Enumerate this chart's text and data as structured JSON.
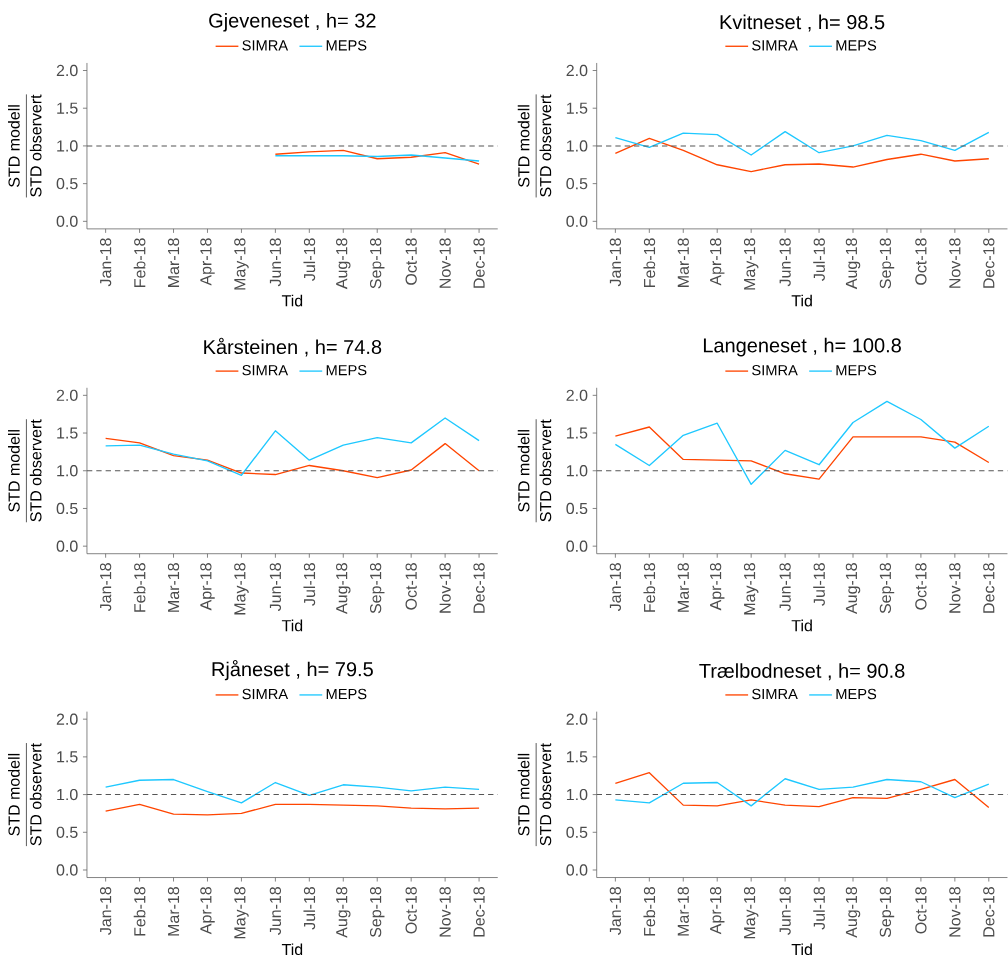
{
  "chart_data": [
    {
      "type": "line",
      "title": "Gjeveneset , h= 32",
      "xlabel": "Tid",
      "ylabel": "\\frac{\\text{STD modell}}{\\text{STD observert}}",
      "legend": "top",
      "categories": [
        "Jan-18",
        "Feb-18",
        "Mar-18",
        "Apr-18",
        "May-18",
        "Jun-18",
        "Jul-18",
        "Aug-18",
        "Sep-18",
        "Oct-18",
        "Nov-18",
        "Dec-18"
      ],
      "ylim": [
        -0.1,
        2.1
      ],
      "yticks": [
        {
          "value": 0,
          "label": "0.0"
        },
        {
          "value": 0.5,
          "label": "0.5"
        },
        {
          "value": 1,
          "label": "1.0"
        },
        {
          "value": 1.5,
          "label": "1.5"
        },
        {
          "value": 2,
          "label": "2.0"
        }
      ],
      "ref_lines": [
        {
          "axis": "y",
          "value": 1,
          "color": "#555555",
          "line_style": "dashed"
        }
      ],
      "series": [
        {
          "name": "SIMRA",
          "color": "#ff4500",
          "values": [
            null,
            null,
            null,
            null,
            null,
            0.89,
            0.92,
            0.94,
            0.83,
            0.85,
            0.91,
            0.76
          ]
        },
        {
          "name": "MEPS",
          "color": "#1ec8ff",
          "values": [
            null,
            null,
            null,
            null,
            null,
            0.87,
            0.87,
            0.87,
            0.86,
            0.88,
            0.84,
            0.8
          ]
        }
      ]
    },
    {
      "type": "line",
      "title": "Kvitneset , h= 98.5",
      "xlabel": "Tid",
      "ylabel": "\\frac{\\text{STD modell}}{\\text{STD observert}}",
      "legend": "top",
      "categories": [
        "Jan-18",
        "Feb-18",
        "Mar-18",
        "Apr-18",
        "May-18",
        "Jun-18",
        "Jul-18",
        "Aug-18",
        "Sep-18",
        "Oct-18",
        "Nov-18",
        "Dec-18"
      ],
      "ylim": [
        -0.1,
        2.1
      ],
      "yticks": [
        {
          "value": 0,
          "label": "0.0"
        },
        {
          "value": 0.5,
          "label": "0.5"
        },
        {
          "value": 1,
          "label": "1.0"
        },
        {
          "value": 1.5,
          "label": "1.5"
        },
        {
          "value": 2,
          "label": "2.0"
        }
      ],
      "ref_lines": [
        {
          "axis": "y",
          "value": 1,
          "color": "#555555",
          "line_style": "dashed"
        }
      ],
      "series": [
        {
          "name": "SIMRA",
          "color": "#ff4500",
          "values": [
            0.9,
            1.1,
            0.94,
            0.75,
            0.66,
            0.75,
            0.76,
            0.72,
            0.82,
            0.89,
            0.8,
            0.83
          ]
        },
        {
          "name": "MEPS",
          "color": "#1ec8ff",
          "values": [
            1.11,
            0.98,
            1.17,
            1.15,
            0.88,
            1.19,
            0.91,
            1.0,
            1.14,
            1.07,
            0.94,
            1.18
          ]
        }
      ]
    },
    {
      "type": "line",
      "title": "Kårsteinen , h= 74.8",
      "xlabel": "Tid",
      "ylabel": "\\frac{\\text{STD modell}}{\\text{STD observert}}",
      "legend": "top",
      "categories": [
        "Jan-18",
        "Feb-18",
        "Mar-18",
        "Apr-18",
        "May-18",
        "Jun-18",
        "Jul-18",
        "Aug-18",
        "Sep-18",
        "Oct-18",
        "Nov-18",
        "Dec-18"
      ],
      "ylim": [
        -0.1,
        2.1
      ],
      "yticks": [
        {
          "value": 0,
          "label": "0.0"
        },
        {
          "value": 0.5,
          "label": "0.5"
        },
        {
          "value": 1,
          "label": "1.0"
        },
        {
          "value": 1.5,
          "label": "1.5"
        },
        {
          "value": 2,
          "label": "2.0"
        }
      ],
      "ref_lines": [
        {
          "axis": "y",
          "value": 1,
          "color": "#555555",
          "line_style": "dashed"
        }
      ],
      "series": [
        {
          "name": "SIMRA",
          "color": "#ff4500",
          "values": [
            1.43,
            1.37,
            1.2,
            1.14,
            0.97,
            0.95,
            1.07,
            1.0,
            0.91,
            1.01,
            1.36,
            1.0
          ]
        },
        {
          "name": "MEPS",
          "color": "#1ec8ff",
          "values": [
            1.33,
            1.34,
            1.22,
            1.13,
            0.94,
            1.53,
            1.14,
            1.34,
            1.44,
            1.37,
            1.7,
            1.4
          ]
        }
      ]
    },
    {
      "type": "line",
      "title": "Langeneset , h= 100.8",
      "xlabel": "Tid",
      "ylabel": "\\frac{\\text{STD modell}}{\\text{STD observert}}",
      "legend": "top",
      "categories": [
        "Jan-18",
        "Feb-18",
        "Mar-18",
        "Apr-18",
        "May-18",
        "Jun-18",
        "Jul-18",
        "Aug-18",
        "Sep-18",
        "Oct-18",
        "Nov-18",
        "Dec-18"
      ],
      "ylim": [
        -0.1,
        2.1
      ],
      "yticks": [
        {
          "value": 0,
          "label": "0.0"
        },
        {
          "value": 0.5,
          "label": "0.5"
        },
        {
          "value": 1,
          "label": "1.0"
        },
        {
          "value": 1.5,
          "label": "1.5"
        },
        {
          "value": 2,
          "label": "2.0"
        }
      ],
      "ref_lines": [
        {
          "axis": "y",
          "value": 1,
          "color": "#555555",
          "line_style": "dashed"
        }
      ],
      "series": [
        {
          "name": "SIMRA",
          "color": "#ff4500",
          "values": [
            1.46,
            1.58,
            1.15,
            1.14,
            1.13,
            0.96,
            0.89,
            1.45,
            1.45,
            1.45,
            1.38,
            1.11
          ]
        },
        {
          "name": "MEPS",
          "color": "#1ec8ff",
          "values": [
            1.35,
            1.07,
            1.47,
            1.63,
            0.82,
            1.27,
            1.08,
            1.64,
            1.92,
            1.68,
            1.3,
            1.59
          ]
        }
      ]
    },
    {
      "type": "line",
      "title": "Rjåneset , h= 79.5",
      "xlabel": "Tid",
      "ylabel": "\\frac{\\text{STD modell}}{\\text{STD observert}}",
      "legend": "top",
      "categories": [
        "Jan-18",
        "Feb-18",
        "Mar-18",
        "Apr-18",
        "May-18",
        "Jun-18",
        "Jul-18",
        "Aug-18",
        "Sep-18",
        "Oct-18",
        "Nov-18",
        "Dec-18"
      ],
      "ylim": [
        -0.1,
        2.1
      ],
      "yticks": [
        {
          "value": 0,
          "label": "0.0"
        },
        {
          "value": 0.5,
          "label": "0.5"
        },
        {
          "value": 1,
          "label": "1.0"
        },
        {
          "value": 1.5,
          "label": "1.5"
        },
        {
          "value": 2,
          "label": "2.0"
        }
      ],
      "ref_lines": [
        {
          "axis": "y",
          "value": 1,
          "color": "#555555",
          "line_style": "dashed"
        }
      ],
      "series": [
        {
          "name": "SIMRA",
          "color": "#ff4500",
          "values": [
            0.78,
            0.87,
            0.74,
            0.73,
            0.75,
            0.87,
            0.87,
            0.86,
            0.85,
            0.82,
            0.81,
            0.82
          ]
        },
        {
          "name": "MEPS",
          "color": "#1ec8ff",
          "values": [
            1.1,
            1.19,
            1.2,
            1.04,
            0.89,
            1.16,
            0.99,
            1.13,
            1.1,
            1.05,
            1.1,
            1.07
          ]
        }
      ]
    },
    {
      "type": "line",
      "title": "Trælbodneset , h= 90.8",
      "xlabel": "Tid",
      "ylabel": "\\frac{\\text{STD modell}}{\\text{STD observert}}",
      "legend": "top",
      "categories": [
        "Jan-18",
        "Feb-18",
        "Mar-18",
        "Apr-18",
        "May-18",
        "Jun-18",
        "Jul-18",
        "Aug-18",
        "Sep-18",
        "Oct-18",
        "Nov-18",
        "Dec-18"
      ],
      "ylim": [
        -0.1,
        2.1
      ],
      "yticks": [
        {
          "value": 0,
          "label": "0.0"
        },
        {
          "value": 0.5,
          "label": "0.5"
        },
        {
          "value": 1,
          "label": "1.0"
        },
        {
          "value": 1.5,
          "label": "1.5"
        },
        {
          "value": 2,
          "label": "2.0"
        }
      ],
      "ref_lines": [
        {
          "axis": "y",
          "value": 1,
          "color": "#555555",
          "line_style": "dashed"
        }
      ],
      "series": [
        {
          "name": "SIMRA",
          "color": "#ff4500",
          "values": [
            1.15,
            1.29,
            0.86,
            0.85,
            0.93,
            0.86,
            0.84,
            0.96,
            0.95,
            1.07,
            1.2,
            0.83
          ]
        },
        {
          "name": "MEPS",
          "color": "#1ec8ff",
          "values": [
            0.93,
            0.89,
            1.15,
            1.16,
            0.85,
            1.21,
            1.07,
            1.1,
            1.2,
            1.17,
            0.96,
            1.14
          ]
        }
      ]
    }
  ]
}
